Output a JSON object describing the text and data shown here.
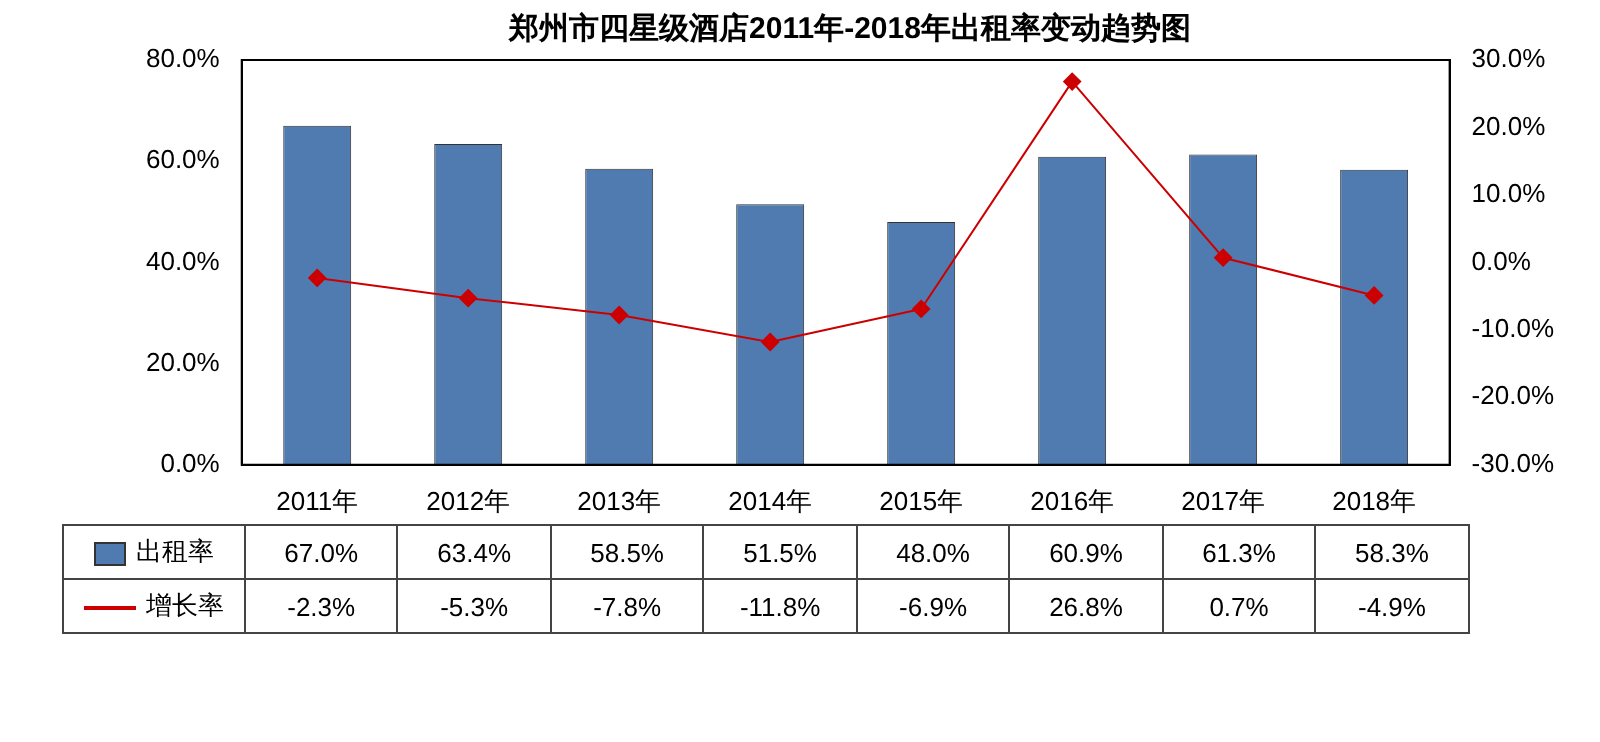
{
  "chart_data": {
    "type": "bar",
    "title": "郑州市四星级酒店2011年-2018年出租率变动趋势图",
    "categories": [
      "2011年",
      "2012年",
      "2013年",
      "2014年",
      "2015年",
      "2016年",
      "2017年",
      "2018年"
    ],
    "series": [
      {
        "name": "出租率",
        "color": "#4f7bb0",
        "values": [
          67.0,
          63.4,
          58.5,
          51.5,
          48.0,
          60.9,
          61.3,
          58.3
        ],
        "value_labels": [
          "67.0%",
          "63.4%",
          "58.5%",
          "51.5%",
          "48.0%",
          "60.9%",
          "61.3%",
          "58.3%"
        ]
      },
      {
        "name": "增长率",
        "type": "line",
        "axis": "y2",
        "color": "#cc0000",
        "values": [
          -2.3,
          -5.3,
          -7.8,
          -11.8,
          -6.9,
          26.8,
          0.7,
          -4.9
        ],
        "value_labels": [
          "-2.3%",
          "-5.3%",
          "-7.8%",
          "-11.8%",
          "-6.9%",
          "26.8%",
          "0.7%",
          "-4.9%"
        ]
      }
    ],
    "ylim": [
      0,
      80
    ],
    "yticks": [
      {
        "value": 0,
        "label": "0.0%"
      },
      {
        "value": 20,
        "label": "20.0%"
      },
      {
        "value": 40,
        "label": "40.0%"
      },
      {
        "value": 60,
        "label": "60.0%"
      },
      {
        "value": 80,
        "label": "80.0%"
      }
    ],
    "y2lim": [
      -30,
      30
    ],
    "y2ticks": [
      {
        "value": -30,
        "label": "-30.0%"
      },
      {
        "value": -20,
        "label": "-20.0%"
      },
      {
        "value": -10,
        "label": "-10.0%"
      },
      {
        "value": 0,
        "label": "0.0%"
      },
      {
        "value": 10,
        "label": "10.0%"
      },
      {
        "value": 20,
        "label": "20.0%"
      },
      {
        "value": 30,
        "label": "30.0%"
      }
    ],
    "grid": false,
    "legend": "bottom left",
    "marker": "diamond",
    "line_style": "solid"
  }
}
